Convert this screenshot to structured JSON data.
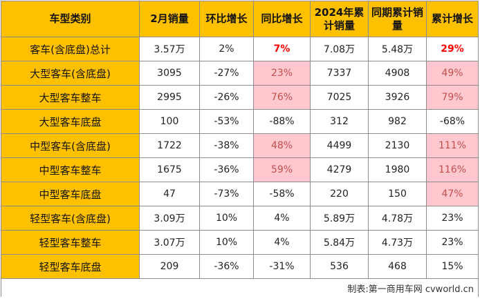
{
  "headers": [
    "车型类别",
    "2月销量",
    "环比增长",
    "同比增长",
    "2024年累计销量",
    "同期累计销量",
    "累计增长"
  ],
  "rows": [
    [
      "客车(含底盘)总计",
      "3.57万",
      "2%",
      "7%",
      "7.08万",
      "5.48万",
      "29%"
    ],
    [
      "大型客车(含底盘)",
      "3095",
      "-27%",
      "23%",
      "7337",
      "4908",
      "49%"
    ],
    [
      "大型客车整车",
      "2995",
      "-26%",
      "76%",
      "7025",
      "3926",
      "79%"
    ],
    [
      "大型客车底盘",
      "100",
      "-53%",
      "-88%",
      "312",
      "982",
      "-68%"
    ],
    [
      "中型客车(含底盘)",
      "1722",
      "-38%",
      "48%",
      "4499",
      "2130",
      "111%"
    ],
    [
      "中型客车整车",
      "1675",
      "-36%",
      "59%",
      "4279",
      "1980",
      "116%"
    ],
    [
      "中型客车底盘",
      "47",
      "-73%",
      "-58%",
      "220",
      "150",
      "47%"
    ],
    [
      "轻型客车(含底盘)",
      "3.09万",
      "10%",
      "4%",
      "5.89万",
      "4.78万",
      "23%"
    ],
    [
      "轻型客车整车",
      "3.07万",
      "10%",
      "4%",
      "5.84万",
      "4.73万",
      "23%"
    ],
    [
      "轻型客车底盘",
      "209",
      "-36%",
      "-31%",
      "536",
      "468",
      "15%"
    ]
  ],
  "footer": "制表:第一商用车网 cvworld.cn",
  "colors": {
    "header_bg": "#ffc000",
    "highlight_bg": "#ffc7ce",
    "highlight_text": "#c0504d",
    "emphasis_red": "#ff0000"
  }
}
